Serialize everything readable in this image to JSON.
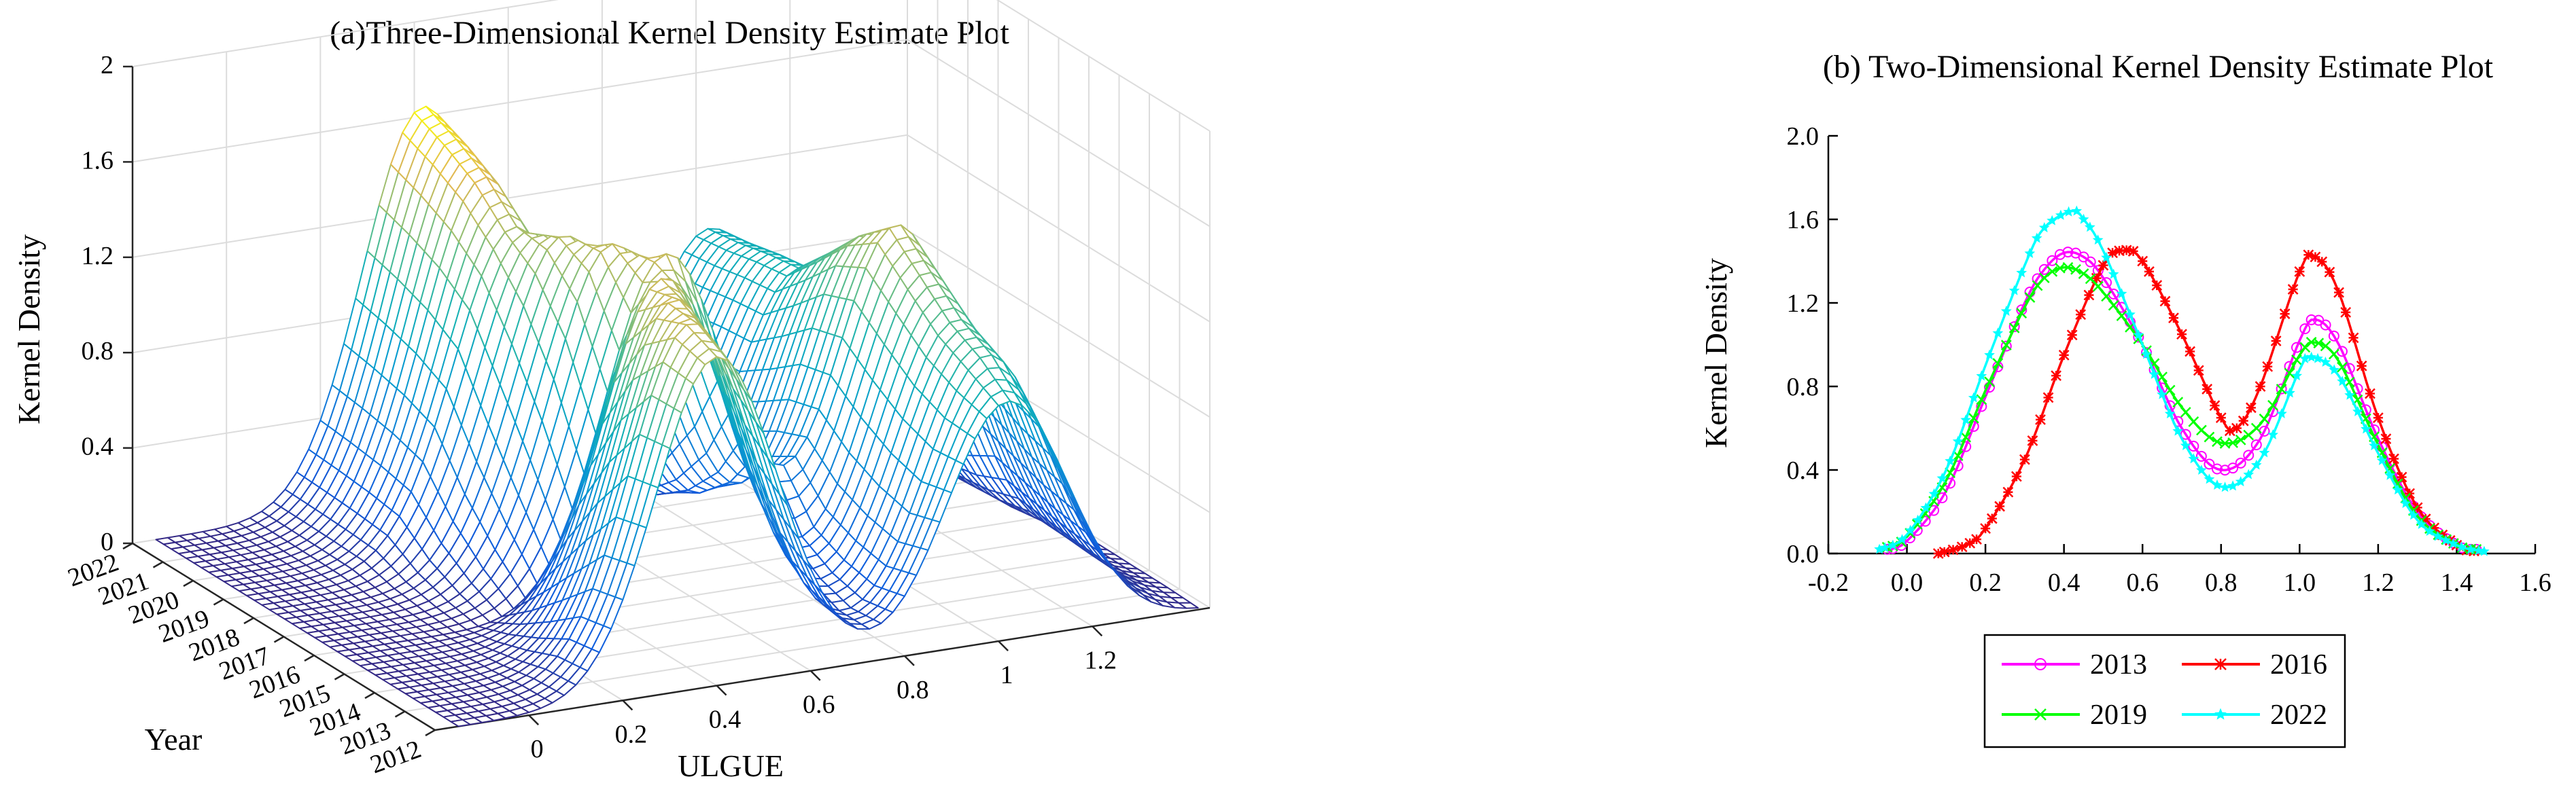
{
  "chart_data": [
    {
      "type": "surface3d",
      "title": "(a)Three-Dimensional Kernel Density Estimate Plot",
      "xlabel": "ULGUE",
      "ylabel": "Year",
      "zlabel": "Kernel Density",
      "x_ticks": [
        "0",
        "0.2",
        "0.4",
        "0.6",
        "0.8",
        "1",
        "1.2"
      ],
      "y_ticks": [
        "2012",
        "2013",
        "2014",
        "2015",
        "2016",
        "2017",
        "2018",
        "2019",
        "2020",
        "2021",
        "2022"
      ],
      "z_ticks": [
        "0",
        "0.4",
        "0.8",
        "1.2",
        "1.6",
        "2"
      ],
      "xlim": [
        -0.2,
        1.45
      ],
      "zlim": [
        0,
        2
      ],
      "grid": true,
      "colormap": "parula",
      "series": [
        {
          "year": "2012",
          "peaks": [
            {
              "mu": 0.4,
              "h": 1.38
            },
            {
              "mu": 1.02,
              "h": 1.0
            }
          ]
        },
        {
          "year": "2013",
          "peaks": [
            {
              "mu": 0.41,
              "h": 1.44
            },
            {
              "mu": 1.04,
              "h": 1.11
            }
          ]
        },
        {
          "year": "2014",
          "peaks": [
            {
              "mu": 0.44,
              "h": 1.45
            },
            {
              "mu": 1.04,
              "h": 1.18
            }
          ]
        },
        {
          "year": "2015",
          "peaks": [
            {
              "mu": 0.48,
              "h": 1.45
            },
            {
              "mu": 1.04,
              "h": 1.3
            }
          ]
        },
        {
          "year": "2016",
          "peaks": [
            {
              "mu": 0.55,
              "h": 1.45
            },
            {
              "mu": 1.04,
              "h": 1.42
            }
          ]
        },
        {
          "year": "2017",
          "peaks": [
            {
              "mu": 0.5,
              "h": 1.43
            },
            {
              "mu": 1.03,
              "h": 1.3
            }
          ]
        },
        {
          "year": "2018",
          "peaks": [
            {
              "mu": 0.46,
              "h": 1.4
            },
            {
              "mu": 1.03,
              "h": 1.15
            }
          ]
        },
        {
          "year": "2019",
          "peaks": [
            {
              "mu": 0.42,
              "h": 1.37
            },
            {
              "mu": 1.03,
              "h": 1.01
            }
          ]
        },
        {
          "year": "2020",
          "peaks": [
            {
              "mu": 0.42,
              "h": 1.5
            },
            {
              "mu": 1.03,
              "h": 0.99
            }
          ]
        },
        {
          "year": "2021",
          "peaks": [
            {
              "mu": 0.42,
              "h": 1.58
            },
            {
              "mu": 1.03,
              "h": 0.96
            }
          ]
        },
        {
          "year": "2022",
          "peaks": [
            {
              "mu": 0.42,
              "h": 1.64
            },
            {
              "mu": 1.03,
              "h": 0.94
            }
          ]
        }
      ]
    },
    {
      "type": "line",
      "title": "(b) Two-Dimensional Kernel Density Estimate Plot",
      "xlabel": "",
      "ylabel": "Kernel Density",
      "xlim": [
        -0.2,
        1.6
      ],
      "ylim": [
        0,
        2
      ],
      "x_ticks": [
        "-0.2",
        "0.0",
        "0.2",
        "0.4",
        "0.6",
        "0.8",
        "1.0",
        "1.2",
        "1.4",
        "1.6"
      ],
      "y_ticks": [
        "0.0",
        "0.4",
        "0.8",
        "1.2",
        "1.6",
        "2.0"
      ],
      "legend_position": "bottom-center",
      "series": [
        {
          "name": "2013",
          "color": "#ff00ff",
          "marker": "circle",
          "x": [
            -0.05,
            0.0,
            0.1,
            0.2,
            0.3,
            0.35,
            0.4,
            0.45,
            0.5,
            0.6,
            0.7,
            0.8,
            0.9,
            1.0,
            1.04,
            1.1,
            1.2,
            1.3,
            1.4,
            1.45
          ],
          "y": [
            0.02,
            0.06,
            0.3,
            0.75,
            1.2,
            1.36,
            1.44,
            1.42,
            1.32,
            1.0,
            0.6,
            0.4,
            0.55,
            1.02,
            1.12,
            1.0,
            0.55,
            0.2,
            0.04,
            0.02
          ]
        },
        {
          "name": "2016",
          "color": "#ff0000",
          "marker": "asterisk",
          "x": [
            0.08,
            0.15,
            0.2,
            0.3,
            0.4,
            0.5,
            0.55,
            0.6,
            0.7,
            0.8,
            0.84,
            0.9,
            1.0,
            1.04,
            1.1,
            1.2,
            1.3,
            1.4,
            1.45
          ],
          "y": [
            0.0,
            0.04,
            0.12,
            0.45,
            0.95,
            1.38,
            1.45,
            1.4,
            1.05,
            0.65,
            0.6,
            0.8,
            1.35,
            1.42,
            1.25,
            0.65,
            0.22,
            0.04,
            0.01
          ]
        },
        {
          "name": "2019",
          "color": "#00ff00",
          "marker": "x",
          "x": [
            -0.05,
            0.0,
            0.1,
            0.2,
            0.3,
            0.35,
            0.4,
            0.45,
            0.5,
            0.6,
            0.7,
            0.8,
            0.9,
            1.0,
            1.04,
            1.1,
            1.2,
            1.3,
            1.4,
            1.45
          ],
          "y": [
            0.03,
            0.08,
            0.35,
            0.78,
            1.18,
            1.32,
            1.37,
            1.34,
            1.25,
            1.0,
            0.7,
            0.53,
            0.62,
            0.95,
            1.01,
            0.92,
            0.52,
            0.18,
            0.04,
            0.02
          ]
        },
        {
          "name": "2022",
          "color": "#00ffff",
          "marker": "star",
          "x": [
            -0.07,
            0.0,
            0.1,
            0.2,
            0.3,
            0.35,
            0.42,
            0.45,
            0.5,
            0.6,
            0.7,
            0.8,
            0.9,
            1.0,
            1.03,
            1.1,
            1.2,
            1.3,
            1.4,
            1.47
          ],
          "y": [
            0.02,
            0.09,
            0.4,
            0.9,
            1.38,
            1.56,
            1.64,
            1.6,
            1.45,
            1.0,
            0.55,
            0.32,
            0.45,
            0.88,
            0.94,
            0.85,
            0.48,
            0.16,
            0.04,
            0.01
          ]
        }
      ]
    }
  ]
}
